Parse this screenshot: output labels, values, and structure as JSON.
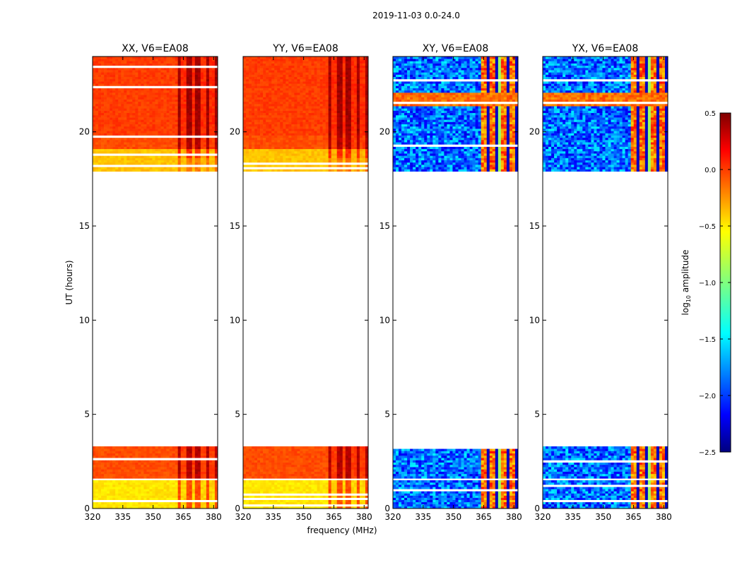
{
  "chart_data": {
    "type": "heatmap",
    "title": "2019-11-03 0.0-24.0",
    "xlabel": "frequency (MHz)",
    "ylabel": "UT (hours)",
    "xlim": [
      320,
      382
    ],
    "ylim": [
      0,
      24
    ],
    "xticks": [
      320,
      335,
      350,
      365,
      380
    ],
    "yticks": [
      0,
      5,
      10,
      15,
      20
    ],
    "panels": [
      {
        "name": "XX, V6=EA08",
        "kind": "parallel"
      },
      {
        "name": "YY, V6=EA08",
        "kind": "parallel"
      },
      {
        "name": "XY, V6=EA08",
        "kind": "cross"
      },
      {
        "name": "YX, V6=EA08",
        "kind": "cross"
      }
    ],
    "data_time_blocks_hours": [
      [
        0.0,
        1.5
      ],
      [
        1.6,
        3.3
      ],
      [
        17.9,
        24.0
      ]
    ],
    "colorbar": {
      "label_main": "log",
      "label_sub": "10",
      "label_rest": " amplitude",
      "ticks": [
        0.5,
        0.0,
        -0.5,
        -1.0,
        -1.5,
        -2.0,
        -2.5
      ],
      "tick_labels": [
        "0.5",
        "0.0",
        "−0.5",
        "−1.0",
        "−1.5",
        "−2.0",
        "−2.5"
      ],
      "range": [
        -2.5,
        0.5
      ],
      "colormap": "jet"
    }
  }
}
